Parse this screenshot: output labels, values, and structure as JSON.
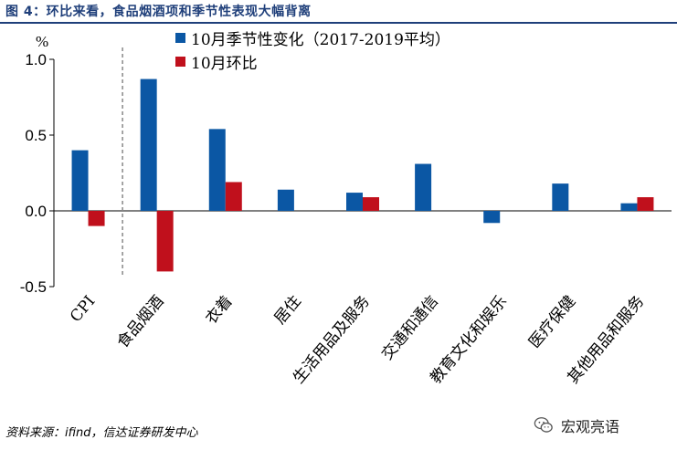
{
  "header": {
    "figure_title": "图 4：环比来看，食品烟酒项和季节性表现大幅背离"
  },
  "chart_data": {
    "type": "bar",
    "title": "图 4：环比来看，食品烟酒项和季节性表现大幅背离",
    "ylabel": "%",
    "ylim": [
      -0.5,
      1.0
    ],
    "yticks": [
      1.0,
      0.5,
      0.0,
      -0.5
    ],
    "ytick_labels": [
      "1.0",
      "0.5",
      "0.0",
      "-0.5"
    ],
    "categories": [
      "CPI",
      "食品烟酒",
      "衣着",
      "居住",
      "生活用品及服务",
      "交通和通信",
      "教育文化和娱乐",
      "医疗保健",
      "其他用品和服务"
    ],
    "series": [
      {
        "name": "10月季节性变化（2017-2019平均）",
        "color": "#0b57a4",
        "values": [
          0.4,
          0.87,
          0.54,
          0.14,
          0.12,
          0.31,
          -0.08,
          0.18,
          0.05
        ]
      },
      {
        "name": "10月环比",
        "color": "#c0101c",
        "values": [
          -0.1,
          -0.4,
          0.19,
          null,
          0.09,
          null,
          null,
          null,
          0.09
        ]
      }
    ],
    "legend_position": "top",
    "grid": false,
    "separator_after_category": "CPI"
  },
  "footer": {
    "source": "资料来源：ifind，信达证券研发中心",
    "watermark_text": "宏观亮语",
    "watermark_icon": "wechat-icon"
  }
}
